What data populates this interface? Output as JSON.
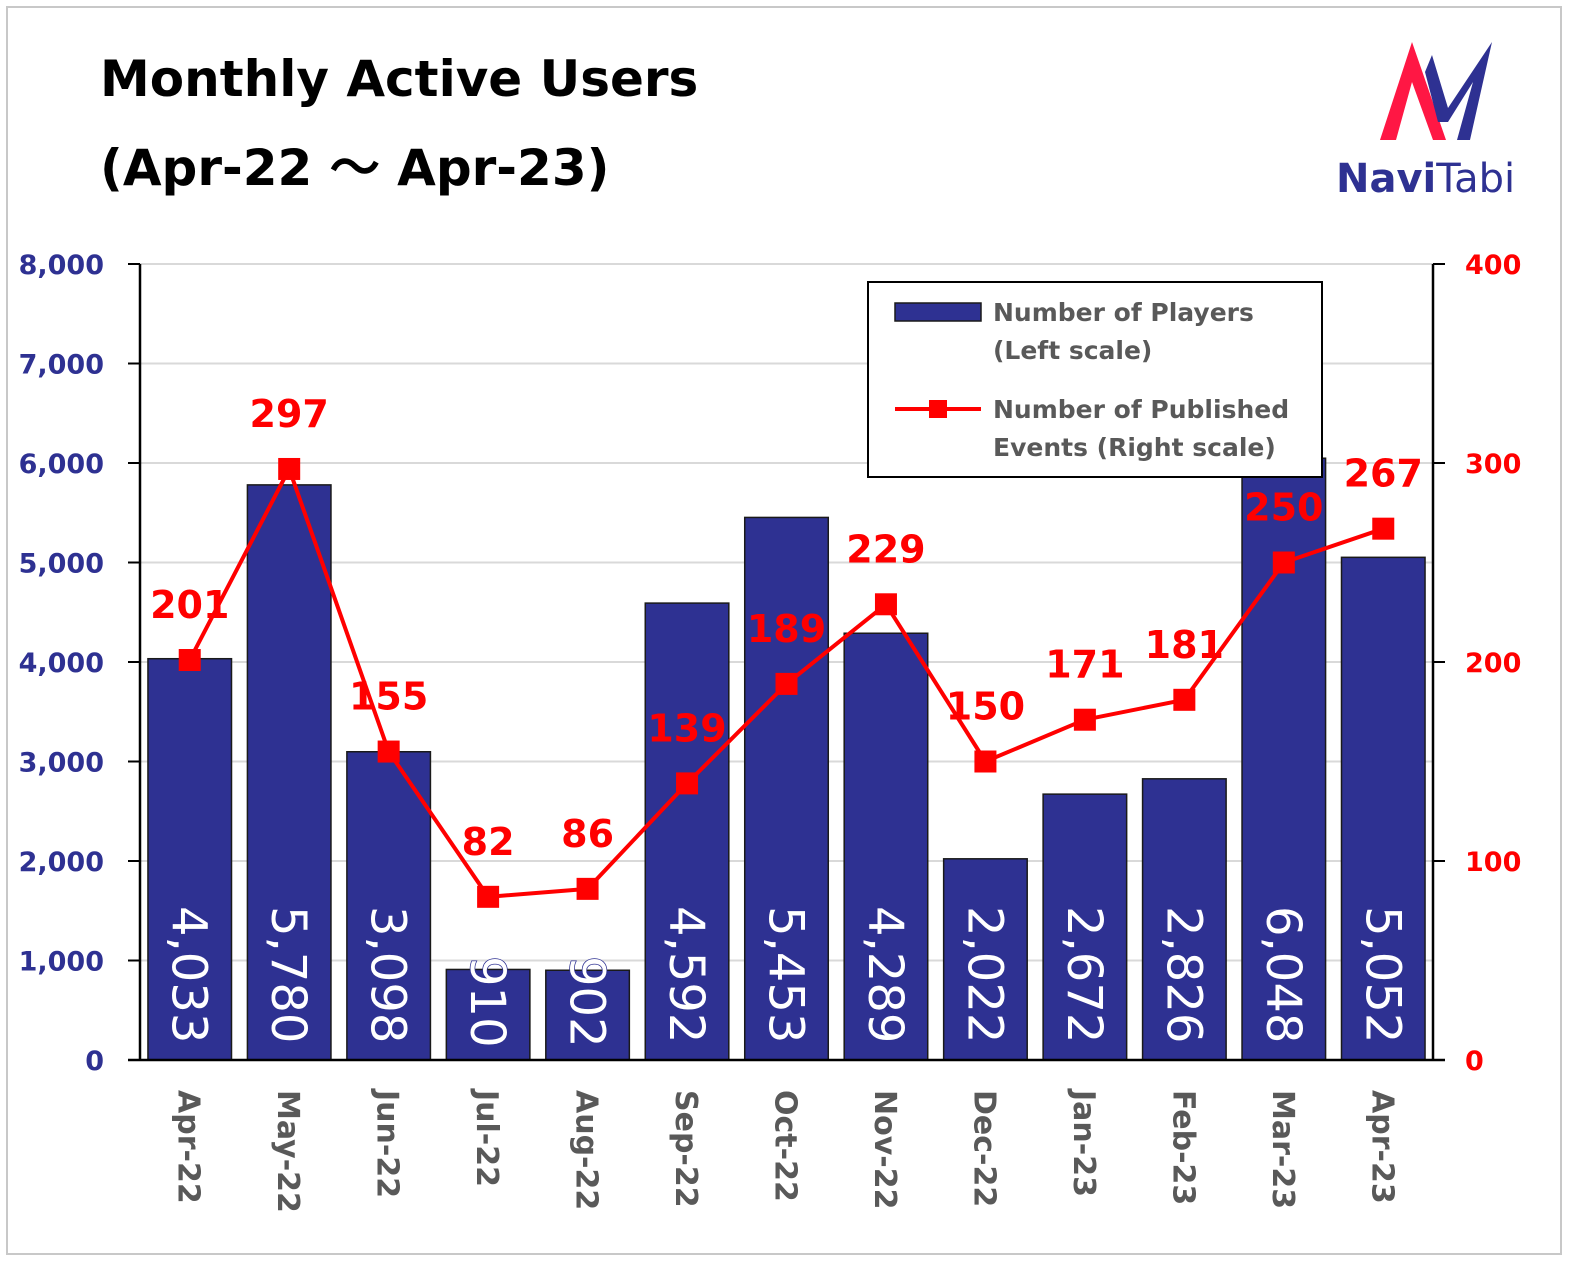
{
  "title": {
    "line1": "Monthly Active Users",
    "line2": "(Apr-22 ～ Apr-23)"
  },
  "logo": {
    "text_bold": "Navi",
    "text_regular": "Tabi",
    "colors": {
      "navy": "#2E3192",
      "red": "#FF1744"
    }
  },
  "colors": {
    "bar": "#2E3192",
    "line": "#FF0000",
    "left_axis": "#2E3192",
    "right_axis": "#FF0000",
    "category": "#595959",
    "grid": "#d9d9d9"
  },
  "chart_data": {
    "type": "bar",
    "categories": [
      "Apr-22",
      "May-22",
      "Jun-22",
      "Jul-22",
      "Aug-22",
      "Sep-22",
      "Oct-22",
      "Nov-22",
      "Dec-22",
      "Jan-23",
      "Feb-23",
      "Mar-23",
      "Apr-23"
    ],
    "series": [
      {
        "name": "Number of Players (Left scale)",
        "type": "bar",
        "axis": "left",
        "values": [
          4033,
          5780,
          3098,
          910,
          902,
          4592,
          5453,
          4289,
          2022,
          2672,
          2826,
          6048,
          5052
        ],
        "labels": [
          "4,033",
          "5,780",
          "3,098",
          "910",
          "902",
          "4,592",
          "5,453",
          "4,289",
          "2,022",
          "2,672",
          "2,826",
          "6,048",
          "5,052"
        ]
      },
      {
        "name": "Number of Published Events (Right scale)",
        "type": "line",
        "axis": "right",
        "values": [
          201,
          297,
          155,
          82,
          86,
          139,
          189,
          229,
          150,
          171,
          181,
          250,
          267
        ],
        "labels": [
          "201",
          "297",
          "155",
          "82",
          "86",
          "139",
          "189",
          "229",
          "150",
          "171",
          "181",
          "250",
          "267"
        ]
      }
    ],
    "left_axis": {
      "range": [
        0,
        8000
      ],
      "ticks": [
        "0",
        "1,000",
        "2,000",
        "3,000",
        "4,000",
        "5,000",
        "6,000",
        "7,000",
        "8,000"
      ]
    },
    "right_axis": {
      "range": [
        0,
        400
      ],
      "ticks": [
        "0",
        "100",
        "200",
        "300",
        "400"
      ]
    },
    "legend": {
      "placement": "top-right",
      "entries": [
        {
          "line1": "Number of Players",
          "line2": "(Left scale)"
        },
        {
          "line1": "Number of Published",
          "line2": "Events (Right scale)"
        }
      ]
    },
    "grid": true,
    "xlabel": "",
    "ylabel": ""
  }
}
